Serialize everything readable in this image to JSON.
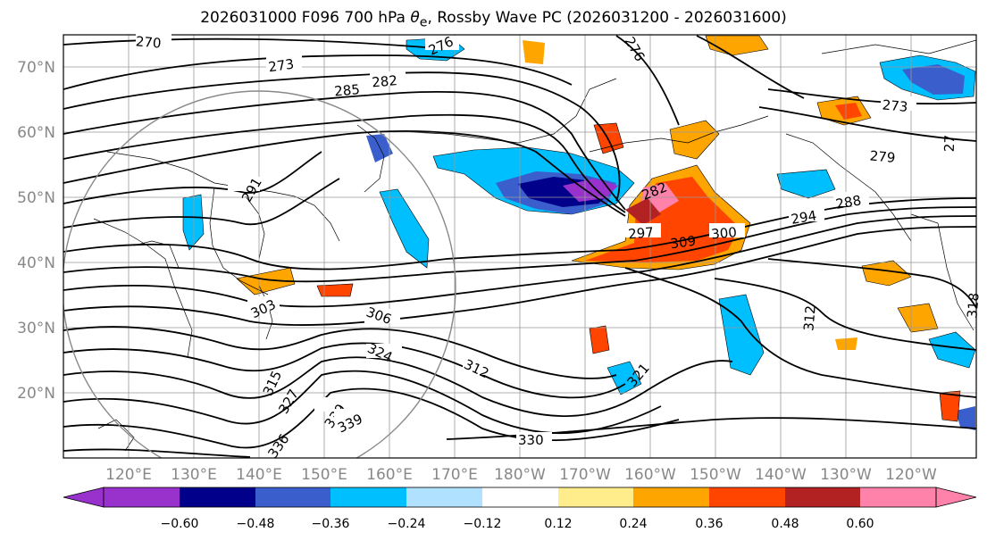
{
  "title": {
    "prefix": "2026031000 F096 700 hPa ",
    "symbol": "θ",
    "subscript": "e",
    "suffix": ", Rossby Wave PC (2026031200 - 2026031600)"
  },
  "map": {
    "lat_labels": [
      "70°N",
      "60°N",
      "50°N",
      "40°N",
      "30°N",
      "20°N"
    ],
    "lon_labels": [
      "120°E",
      "130°E",
      "140°E",
      "150°E",
      "160°E",
      "170°E",
      "180°W",
      "170°W",
      "160°W",
      "150°W",
      "140°W",
      "130°W",
      "120°W"
    ],
    "contour_labels": [
      "270",
      "273",
      "285",
      "282",
      "276",
      "276",
      "273",
      "279",
      "27",
      "291",
      "282",
      "294",
      "288",
      "297",
      "309",
      "300",
      "303",
      "306",
      "312",
      "312",
      "324",
      "315",
      "327",
      "339",
      "339",
      "336",
      "330",
      "318",
      "321"
    ]
  },
  "colorbar": {
    "tick_labels": [
      "−0.60",
      "−0.48",
      "−0.36",
      "−0.24",
      "−0.12",
      "0.12",
      "0.24",
      "0.36",
      "0.48",
      "0.60"
    ],
    "colors": [
      "#9932cc",
      "#00008b",
      "#3a5fcd",
      "#00bfff",
      "#b0e2ff",
      "#ffffff",
      "#ffec8b",
      "#ffa500",
      "#ff4500",
      "#b22222",
      "#ff82ab"
    ]
  }
}
